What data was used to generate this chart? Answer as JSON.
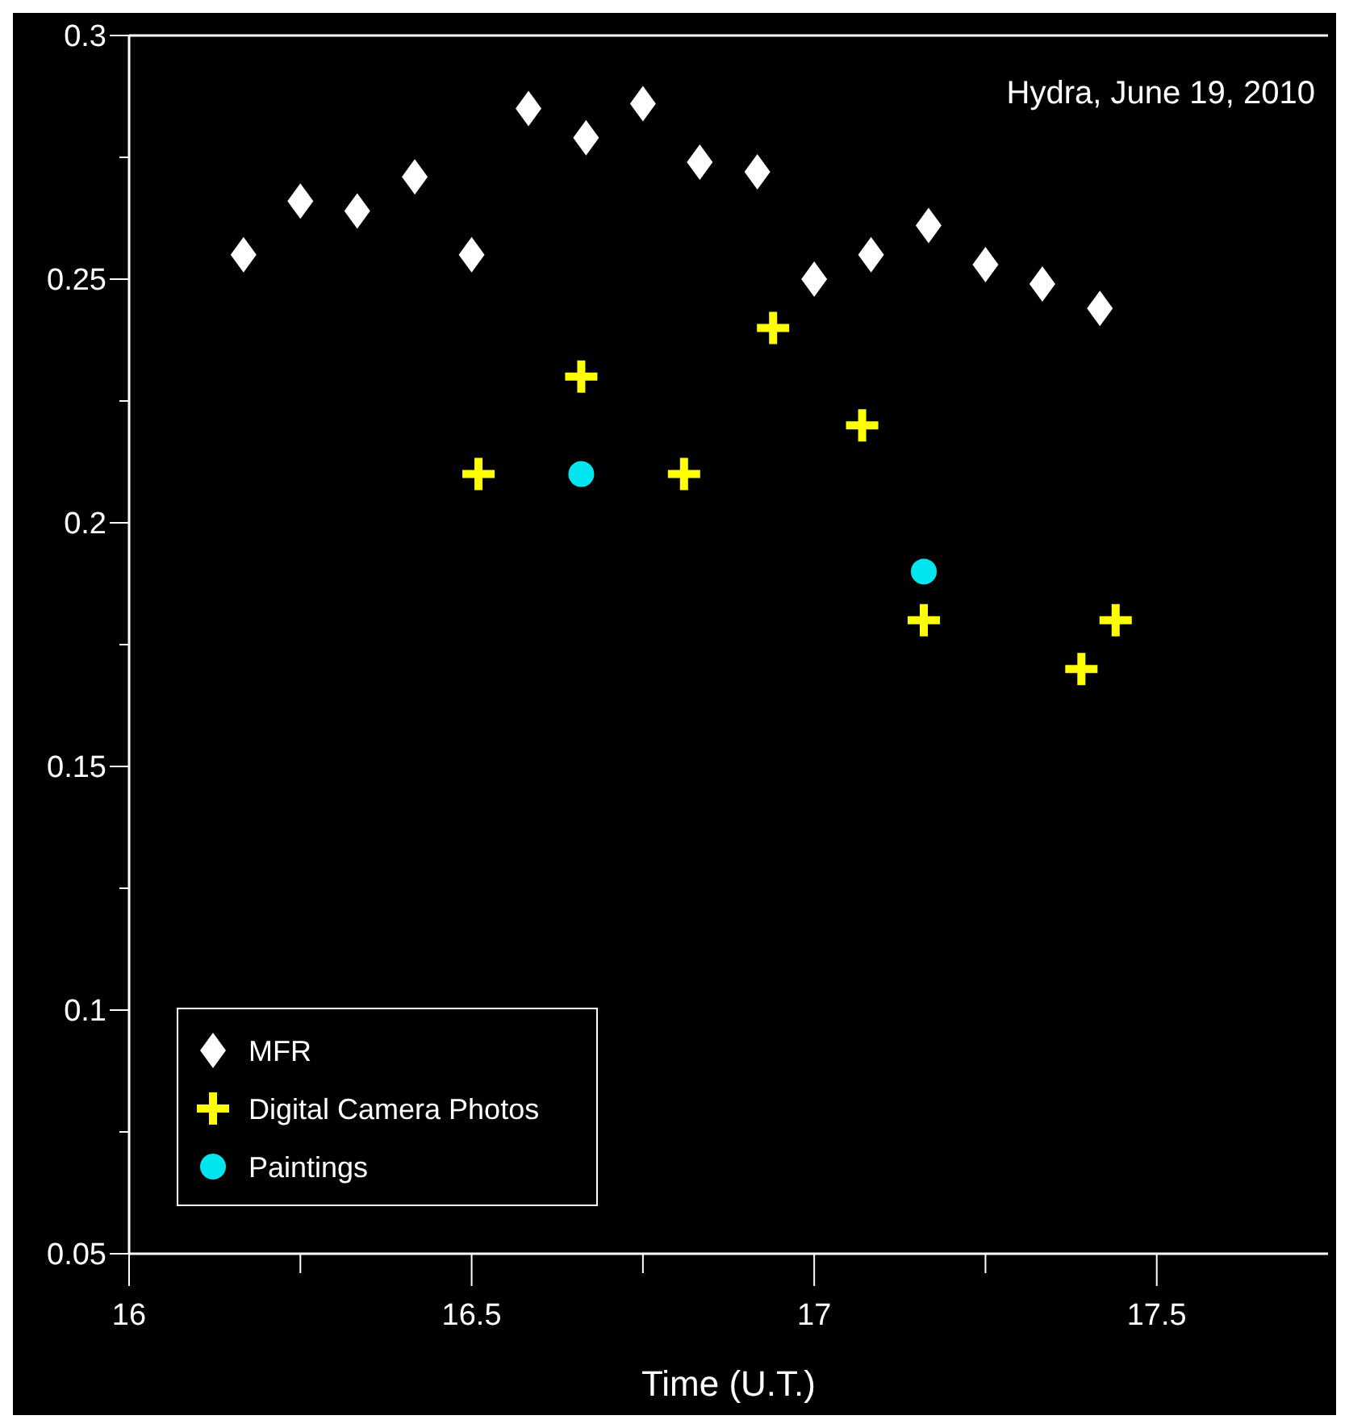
{
  "chart_data": {
    "type": "scatter",
    "title": "Hydra, June 19, 2010",
    "xlabel": "Time (U.T.)",
    "xlim": [
      16,
      17.75
    ],
    "xticks": [
      16,
      16.5,
      17,
      17.5,
      {
        "value": 16.25,
        "label": null
      },
      {
        "value": 16.75,
        "label": null
      },
      {
        "value": 17.25,
        "label": null
      }
    ],
    "ylim": [
      0.05,
      0.3
    ],
    "yticks": [
      0.05,
      0.1,
      0.15,
      0.2,
      0.25,
      0.3,
      {
        "value": 0.075,
        "label": null
      },
      {
        "value": 0.125,
        "label": null
      },
      {
        "value": 0.175,
        "label": null
      },
      {
        "value": 0.225,
        "label": null
      },
      {
        "value": 0.275,
        "label": null
      }
    ],
    "legend": "bottom left",
    "grid": false,
    "series": [
      {
        "name": "MFR",
        "color": "#ffffff",
        "marker": "diamond",
        "x": [
          16.167,
          16.25,
          16.333,
          16.417,
          16.5,
          16.583,
          16.667,
          16.75,
          16.833,
          16.917,
          17,
          17.083,
          17.167,
          17.25,
          17.333,
          17.417
        ],
        "values": [
          0.255,
          0.266,
          0.264,
          0.271,
          0.255,
          0.285,
          0.279,
          0.286,
          0.274,
          0.272,
          0.25,
          0.255,
          0.261,
          0.253,
          0.249,
          0.244
        ]
      },
      {
        "name": "Digital Camera Photos",
        "color": "#ffff00",
        "marker": "cross",
        "x": [
          16.51,
          16.66,
          16.81,
          16.94,
          17.07,
          17.16,
          17.39,
          17.44
        ],
        "values": [
          0.21,
          0.23,
          0.21,
          0.24,
          0.22,
          0.18,
          0.17,
          0.18
        ]
      },
      {
        "name": "Paintings",
        "color": "#00e5ee",
        "marker": "circle",
        "x": [
          16.66,
          17.16
        ],
        "values": [
          0.21,
          0.19
        ]
      }
    ]
  }
}
